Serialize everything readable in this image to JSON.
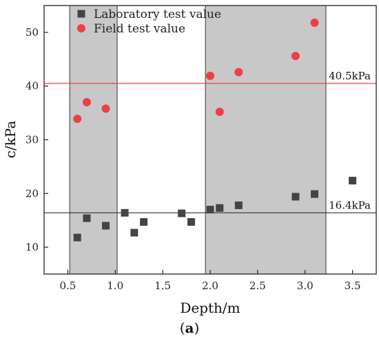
{
  "chart_data": {
    "type": "scatter",
    "xlabel": "Depth/m",
    "ylabel": "c/kPa",
    "xlim": [
      0.25,
      3.75
    ],
    "ylim": [
      5,
      55
    ],
    "x_ticks": [
      0.5,
      1.0,
      1.5,
      2.0,
      2.5,
      3.0,
      3.5
    ],
    "x_tick_labels": [
      "0.5",
      "1.0",
      "1.5",
      "2.0",
      "2.5",
      "3.0",
      "3.5"
    ],
    "y_ticks": [
      10,
      20,
      30,
      40,
      50
    ],
    "y_tick_labels": [
      "10",
      "20",
      "30",
      "40",
      "50"
    ],
    "grid": false,
    "legend_position": "top-left",
    "shaded_bands": [
      {
        "x_start": 0.52,
        "x_end": 1.02,
        "color": "#c8c8c8"
      },
      {
        "x_start": 1.95,
        "x_end": 3.22,
        "color": "#c8c8c8"
      }
    ],
    "reference_lines": [
      {
        "y": 40.5,
        "label": "40.5kPa",
        "color": "#e8323c"
      },
      {
        "y": 16.4,
        "label": "16.4kPa",
        "color": "#333333"
      }
    ],
    "series": [
      {
        "name": "Laboratory test value",
        "marker": "square",
        "color": "#444444",
        "points": [
          {
            "x": 0.6,
            "y": 11.8
          },
          {
            "x": 0.7,
            "y": 15.4
          },
          {
            "x": 0.9,
            "y": 14.0
          },
          {
            "x": 1.1,
            "y": 16.4
          },
          {
            "x": 1.2,
            "y": 12.7
          },
          {
            "x": 1.3,
            "y": 14.7
          },
          {
            "x": 1.7,
            "y": 16.3
          },
          {
            "x": 1.8,
            "y": 14.7
          },
          {
            "x": 2.0,
            "y": 17.0
          },
          {
            "x": 2.1,
            "y": 17.3
          },
          {
            "x": 2.3,
            "y": 17.8
          },
          {
            "x": 2.9,
            "y": 19.4
          },
          {
            "x": 3.1,
            "y": 19.9
          },
          {
            "x": 3.5,
            "y": 22.4
          }
        ]
      },
      {
        "name": "Field test value",
        "marker": "circle",
        "color": "#ef3e45",
        "points": [
          {
            "x": 0.6,
            "y": 33.9
          },
          {
            "x": 0.7,
            "y": 37.0
          },
          {
            "x": 0.9,
            "y": 35.8
          },
          {
            "x": 2.0,
            "y": 41.9
          },
          {
            "x": 2.1,
            "y": 35.2
          },
          {
            "x": 2.3,
            "y": 42.6
          },
          {
            "x": 2.9,
            "y": 45.6
          },
          {
            "x": 3.1,
            "y": 51.8
          }
        ]
      }
    ]
  },
  "caption": {
    "open": "(",
    "letter": "a",
    "close": ")"
  }
}
